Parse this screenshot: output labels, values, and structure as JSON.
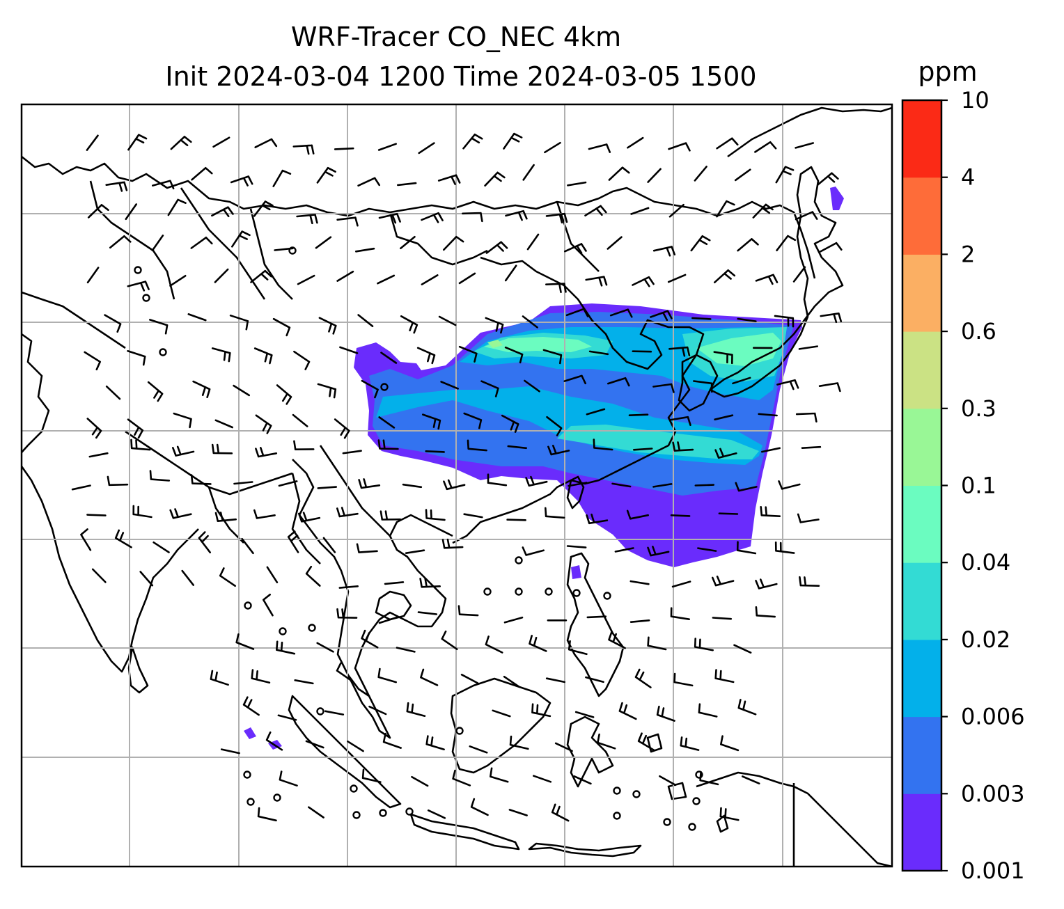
{
  "figure": {
    "title_line1": "WRF-Tracer CO_NEC 4km",
    "title_line2": "Init 2024-03-04 1200 Time 2024-03-05 1500"
  },
  "colorbar": {
    "unit": "ppm",
    "levels": [
      "0.001",
      "0.003",
      "0.006",
      "0.02",
      "0.04",
      "0.1",
      "0.3",
      "0.6",
      "2",
      "4",
      "10"
    ],
    "colors": [
      "#6a2cfc",
      "#3373f0",
      "#03b0ea",
      "#33dbd4",
      "#6bfcc0",
      "#99f796",
      "#cbe284",
      "#fbaf63",
      "#fe6c39",
      "#fb2a16"
    ]
  },
  "chart_data": {
    "type": "heatmap",
    "variable": "CO_NEC tracer concentration",
    "unit": "ppm",
    "contour_levels": [
      0.001,
      0.003,
      0.006,
      0.02,
      0.04,
      0.1,
      0.3,
      0.6,
      2,
      4,
      10
    ],
    "overlay": "wind barbs",
    "grid": true
  }
}
